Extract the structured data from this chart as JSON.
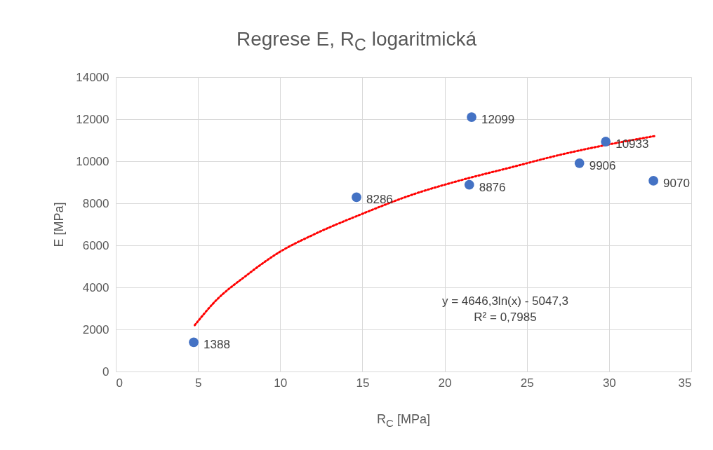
{
  "chart_data": {
    "type": "scatter",
    "title": "Regrese E, R$_{C}$ logaritmická",
    "xlabel": "R$_{C}$ [MPa]",
    "ylabel": "E [MPa]",
    "xlim": [
      0,
      35
    ],
    "xticks": [
      0,
      5,
      10,
      15,
      20,
      25,
      30,
      35
    ],
    "ylim": [
      0,
      14000
    ],
    "yticks": [
      0,
      2000,
      4000,
      6000,
      8000,
      10000,
      12000,
      14000
    ],
    "grid": true,
    "series": [
      {
        "marker": "circle",
        "color": "#4472c4",
        "x": [
          4.74,
          14.64,
          21.64,
          21.5,
          28.2,
          29.8,
          32.7
        ],
        "values": [
          1388,
          8286,
          12099,
          8876,
          9906,
          10933,
          9070
        ],
        "value_labels": [
          "1388",
          "8286",
          "12099",
          "8876",
          "9906",
          "10933",
          "9070"
        ]
      },
      {
        "type": "line",
        "color": "#ff0000",
        "line_style": "dotted",
        "x": [
          4.8,
          6,
          8,
          10,
          12,
          15,
          18,
          21,
          24,
          27,
          30,
          32.8
        ],
        "values": [
          2200,
          3300,
          4600,
          5700,
          6500,
          7500,
          8400,
          9100,
          9700,
          10300,
          10800,
          11200
        ]
      }
    ],
    "annotations": [
      "y = 4646,3ln(x) - 5047,3",
      "R² = 0,7985"
    ]
  }
}
